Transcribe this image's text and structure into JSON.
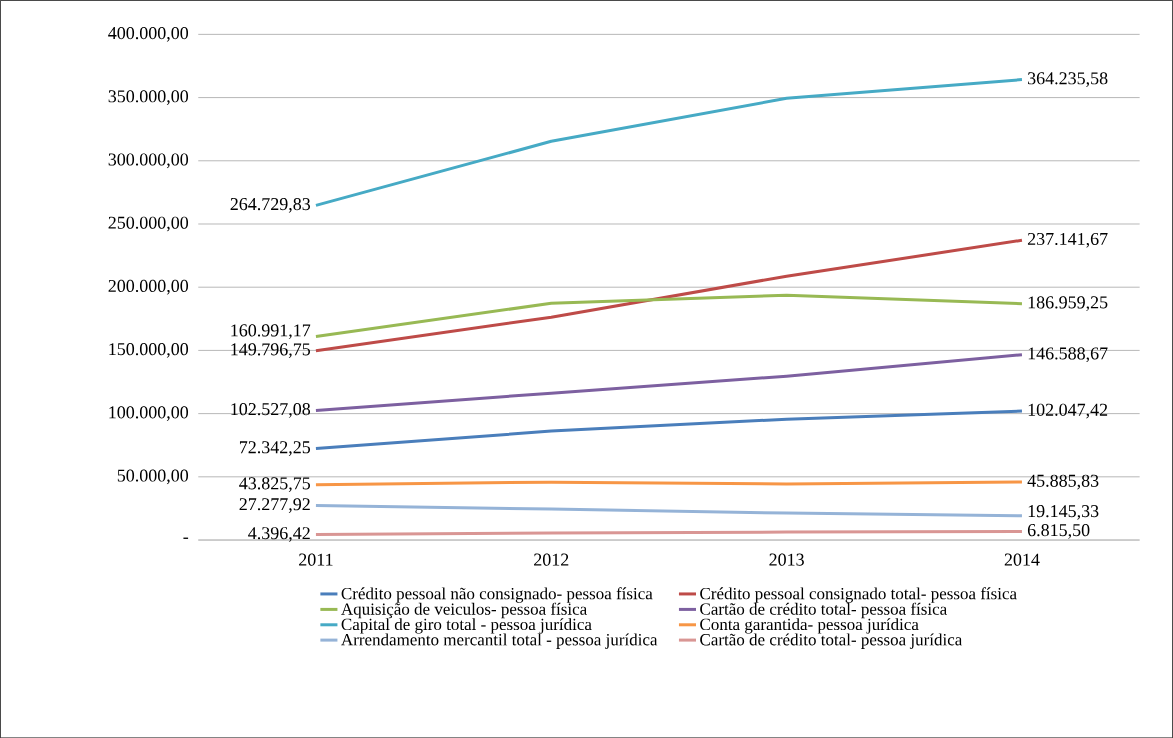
{
  "chart_data": {
    "type": "line",
    "categories": [
      "2011",
      "2012",
      "2013",
      "2014"
    ],
    "ylim": [
      0,
      400000
    ],
    "yticks": [
      {
        "value": 0,
        "label": "-"
      },
      {
        "value": 50000,
        "label": "50.000,00"
      },
      {
        "value": 100000,
        "label": "100.000,00"
      },
      {
        "value": 150000,
        "label": "150.000,00"
      },
      {
        "value": 200000,
        "label": "200.000,00"
      },
      {
        "value": 250000,
        "label": "250.000,00"
      },
      {
        "value": 300000,
        "label": "300.000,00"
      },
      {
        "value": 350000,
        "label": "350.000,00"
      },
      {
        "value": 400000,
        "label": "400.000,00"
      }
    ],
    "grid": "y",
    "legend": "bottom",
    "marker": "none",
    "line_style": "solid",
    "series": [
      {
        "name": "Crédito pessoal não consignado- pessoa física",
        "color": "#4a7ebb",
        "values": [
          72342.25,
          86200,
          95600,
          102047.42
        ],
        "value_labels": [
          "72.342,25",
          null,
          null,
          "102.047,42"
        ]
      },
      {
        "name": "Crédito pessoal consignado total- pessoa física",
        "color": "#be4b48",
        "values": [
          149796.75,
          176300,
          208700,
          237141.67
        ],
        "value_labels": [
          "149.796,75",
          null,
          null,
          "237.141,67"
        ]
      },
      {
        "name": "Aquisição de veiculos- pessoa física",
        "color": "#98b954",
        "values": [
          160991.17,
          187300,
          193700,
          186959.25
        ],
        "value_labels": [
          "160.991,17",
          null,
          null,
          "186.959,25"
        ]
      },
      {
        "name": "Cartão de crédito total- pessoa física",
        "color": "#7d60a0",
        "values": [
          102527.08,
          116200,
          129600,
          146588.67
        ],
        "value_labels": [
          "102.527,08",
          null,
          null,
          "146.588,67"
        ]
      },
      {
        "name": "Capital de giro total - pessoa jurídica",
        "color": "#46aac5",
        "values": [
          264729.83,
          315400,
          349400,
          364235.58
        ],
        "value_labels": [
          "264.729,83",
          null,
          null,
          "364.235,58"
        ]
      },
      {
        "name": "Conta garantida- pessoa jurídica",
        "color": "#f79646",
        "values": [
          43825.75,
          45800,
          44300,
          45885.83
        ],
        "value_labels": [
          "43.825,75",
          null,
          null,
          "45.885,83"
        ]
      },
      {
        "name": "Arrendamento mercantil total - pessoa jurídica",
        "color": "#95b3d7",
        "values": [
          27277.92,
          24500,
          21300,
          19145.33
        ],
        "value_labels": [
          "27.277,92",
          null,
          null,
          "19.145,33"
        ]
      },
      {
        "name": "Cartão de crédito total- pessoa jurídica",
        "color": "#d99694",
        "values": [
          4396.42,
          5500,
          6300,
          6815.5
        ],
        "value_labels": [
          "4.396,42",
          null,
          null,
          "6.815,50"
        ]
      }
    ]
  }
}
